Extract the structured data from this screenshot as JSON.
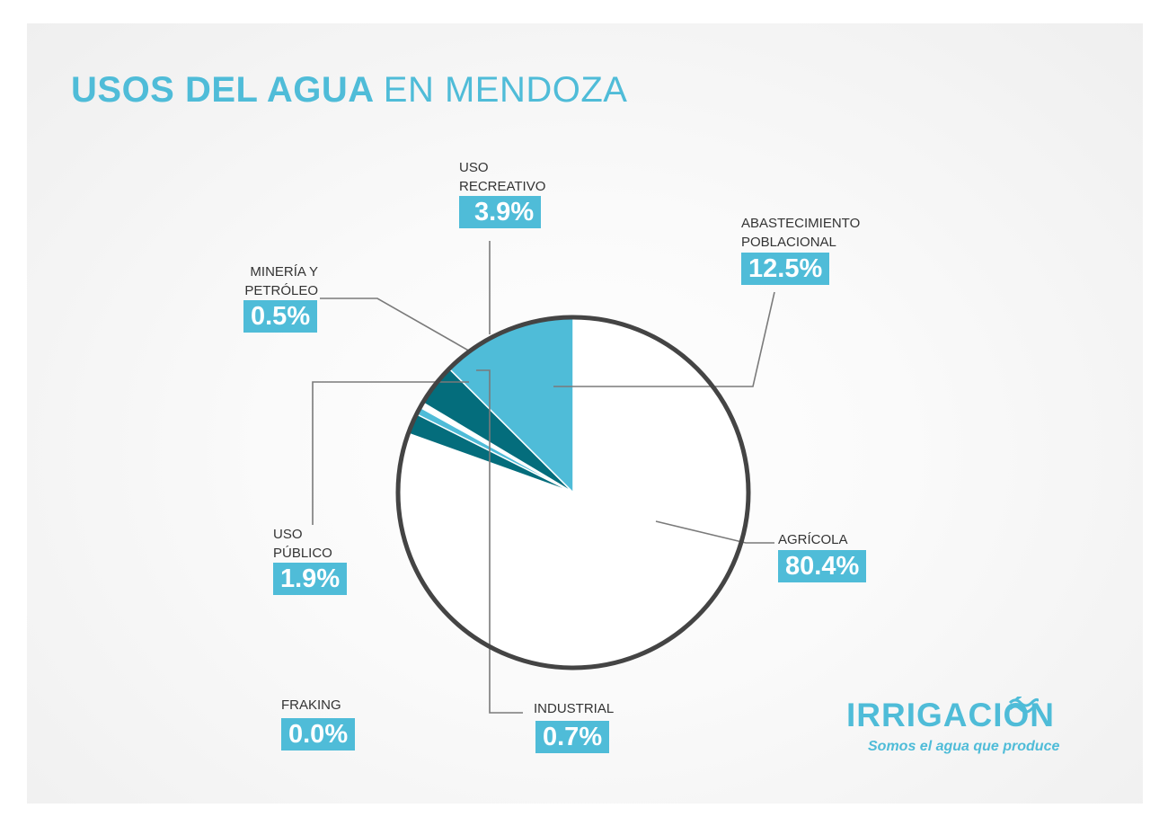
{
  "title": {
    "bold": "USOS DEL AGUA",
    "light": "EN MENDOZA"
  },
  "colors": {
    "accent": "#4fbcd8",
    "dark": "#046d7c",
    "rim": "#444444",
    "leader": "#777777"
  },
  "chart_data": {
    "type": "pie",
    "title": "USOS DEL AGUA EN MENDOZA",
    "unit": "%",
    "slices": [
      {
        "name": "AGRÍCOLA",
        "value": 80.4,
        "label_lines": [
          "AGRÍCOLA"
        ],
        "badge": "80.4%",
        "color": "#ffffff"
      },
      {
        "name": "ABASTECIMIENTO POBLACIONAL",
        "value": 12.5,
        "label_lines": [
          "ABASTECIMIENTO",
          "POBLACIONAL"
        ],
        "badge": "12.5%",
        "color": "#4fbcd8"
      },
      {
        "name": "USO RECREATIVO",
        "value": 3.9,
        "label_lines": [
          "USO",
          "RECREATIVO"
        ],
        "badge": "3.9%",
        "color": "#046d7c"
      },
      {
        "name": "MINERÍA Y PETRÓLEO",
        "value": 0.5,
        "label_lines": [
          "MINERÍA Y",
          "PETRÓLEO"
        ],
        "badge": "0.5%",
        "color": "#ffffff"
      },
      {
        "name": "INDUSTRIAL",
        "value": 0.7,
        "label_lines": [
          "INDUSTRIAL"
        ],
        "badge": "0.7%",
        "color": "#4fbcd8"
      },
      {
        "name": "USO PÚBLICO",
        "value": 1.9,
        "label_lines": [
          "USO",
          "PÚBLICO"
        ],
        "badge": "1.9%",
        "color": "#046d7c"
      },
      {
        "name": "FRAKING",
        "value": 0.0,
        "label_lines": [
          "FRAKING"
        ],
        "badge": "0.0%",
        "color": "#4fbcd8"
      }
    ]
  },
  "logo": {
    "wordmark": "IRRIGACIÓN",
    "tagline": "Somos el agua que produce",
    "icon": "water-wave-icon"
  }
}
